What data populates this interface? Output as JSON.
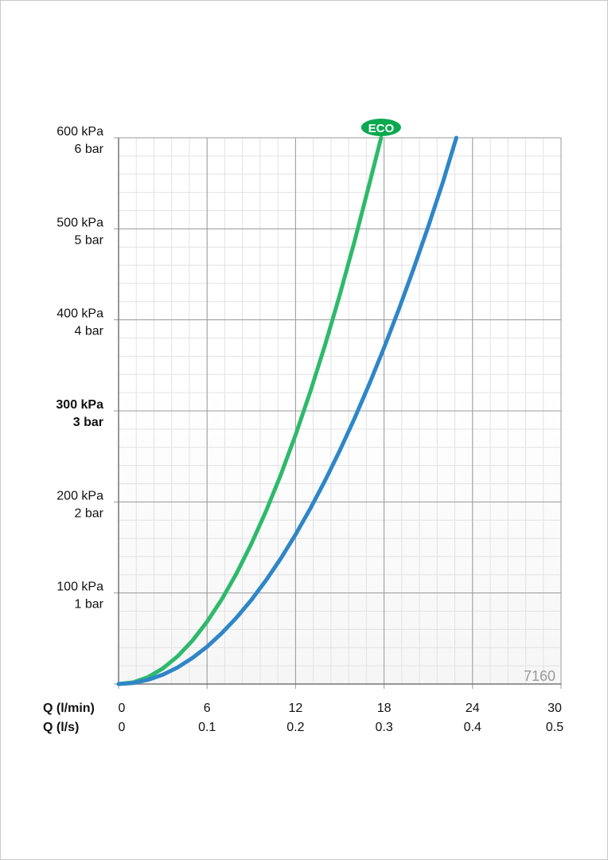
{
  "chart_data": {
    "type": "line",
    "title": "",
    "xlim": [
      0,
      30
    ],
    "ylim": [
      0,
      600
    ],
    "grid": true,
    "x_axes": [
      {
        "label": "Q (l/min)",
        "ticks": [
          "0",
          "6",
          "12",
          "18",
          "24",
          "30"
        ]
      },
      {
        "label": "Q (l/s)",
        "ticks": [
          "0",
          "0.1",
          "0.2",
          "0.3",
          "0.4",
          "0.5"
        ]
      }
    ],
    "y_ticks": [
      {
        "value": 100,
        "kpa": "100 kPa",
        "bar": "1 bar",
        "bold": false
      },
      {
        "value": 200,
        "kpa": "200 kPa",
        "bar": "2 bar",
        "bold": false
      },
      {
        "value": 300,
        "kpa": "300 kPa",
        "bar": "3 bar",
        "bold": true
      },
      {
        "value": 400,
        "kpa": "400 kPa",
        "bar": "4 bar",
        "bold": false
      },
      {
        "value": 500,
        "kpa": "500 kPa",
        "bar": "5 bar",
        "bold": false
      },
      {
        "value": 600,
        "kpa": "600 kPa",
        "bar": "6 bar",
        "bold": false
      }
    ],
    "series": [
      {
        "color": "#2dba6a",
        "badge": "ECO",
        "x": [
          0,
          1,
          2,
          3,
          4,
          5,
          6,
          7,
          8,
          9,
          10,
          11,
          12,
          13,
          14,
          15,
          16,
          17,
          17.8
        ],
        "y": [
          0,
          1.9,
          7.6,
          17.1,
          30.4,
          47.5,
          68.4,
          93.1,
          121.6,
          153.9,
          190,
          229.9,
          273.6,
          321.1,
          372.4,
          427.5,
          486.4,
          549.1,
          600
        ]
      },
      {
        "color": "#2e86c8",
        "x": [
          0,
          1,
          2,
          3,
          4,
          5,
          6,
          7,
          8,
          9,
          10,
          11,
          12,
          13,
          14,
          15,
          16,
          17,
          18,
          19,
          20,
          21,
          22,
          22.9
        ],
        "y": [
          0,
          1.1,
          4.6,
          10.3,
          18.2,
          28.5,
          41,
          55.9,
          73,
          92.3,
          114,
          137.9,
          164.2,
          192.7,
          223.4,
          256.5,
          291.8,
          329.5,
          369.4,
          411.5,
          456,
          502.7,
          551.8,
          600
        ]
      }
    ],
    "annotation": "7160",
    "badge_color": "#0aa84f"
  }
}
